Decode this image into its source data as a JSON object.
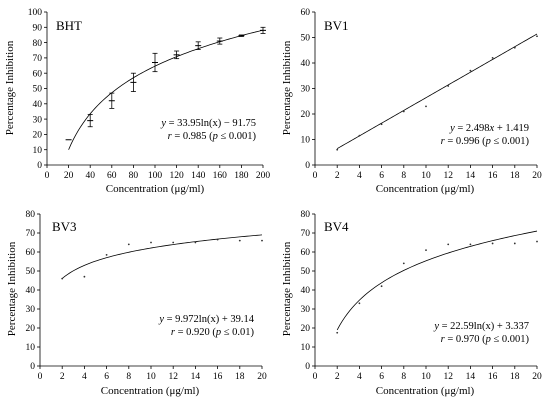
{
  "chart_data": [
    {
      "type": "scatter",
      "panel_label": "BHT",
      "xlabel": "Concentration (μg/ml)",
      "ylabel": "Percentage Inhibition",
      "xlim": [
        0,
        200
      ],
      "ylim": [
        0,
        100
      ],
      "xticks": [
        0,
        20,
        40,
        60,
        80,
        100,
        120,
        140,
        160,
        180,
        200
      ],
      "yticks": [
        0,
        10,
        20,
        30,
        40,
        50,
        60,
        70,
        80,
        90,
        100
      ],
      "grid": false,
      "fit": {
        "model": "log",
        "a": 33.95,
        "b": -91.75,
        "x_range": [
          20,
          200
        ]
      },
      "annotation": {
        "equation": {
          "lhs": "y",
          "rhs": " = 33.95ln(x) − 91.75"
        },
        "stats": {
          "r": "r",
          "rest": " = 0.985 (",
          "p": "p",
          "rest2": " ≤ 0.001)"
        }
      },
      "points": [
        {
          "x": 20,
          "y": 16.5,
          "err": 0
        },
        {
          "x": 40,
          "y": 29,
          "err": 4
        },
        {
          "x": 60,
          "y": 42,
          "err": 5
        },
        {
          "x": 80,
          "y": 54,
          "err": 6
        },
        {
          "x": 100,
          "y": 67,
          "err": 6
        },
        {
          "x": 120,
          "y": 72,
          "err": 2.5
        },
        {
          "x": 140,
          "y": 78,
          "err": 2.5
        },
        {
          "x": 160,
          "y": 81,
          "err": 2
        },
        {
          "x": 180,
          "y": 84.5,
          "err": 0.5
        },
        {
          "x": 200,
          "y": 88,
          "err": 2
        }
      ]
    },
    {
      "type": "scatter",
      "panel_label": "BV1",
      "xlabel": "Concentration (μg/ml)",
      "ylabel": "Percentage Inhibition",
      "xlim": [
        0,
        20
      ],
      "ylim": [
        0,
        60
      ],
      "xticks": [
        0,
        2,
        4,
        6,
        8,
        10,
        12,
        14,
        16,
        18,
        20
      ],
      "yticks": [
        0,
        10,
        20,
        30,
        40,
        50,
        60
      ],
      "grid": false,
      "fit": {
        "model": "linear",
        "a": 2.498,
        "b": 1.419,
        "x_range": [
          2,
          20
        ]
      },
      "annotation": {
        "equation": {
          "lhs": "y",
          "rhs": " = 2.498",
          "x": "x",
          "rest": " + 1.419"
        },
        "stats": {
          "r": "r",
          "rest": " = 0.996 (",
          "p": "p",
          "rest2": " ≤ 0.001)"
        }
      },
      "points": [
        {
          "x": 2,
          "y": 6
        },
        {
          "x": 4,
          "y": 11.5
        },
        {
          "x": 6,
          "y": 16
        },
        {
          "x": 8,
          "y": 21
        },
        {
          "x": 10,
          "y": 23
        },
        {
          "x": 12,
          "y": 31
        },
        {
          "x": 14,
          "y": 37
        },
        {
          "x": 16,
          "y": 42
        },
        {
          "x": 18,
          "y": 46
        },
        {
          "x": 20,
          "y": 50.5
        }
      ]
    },
    {
      "type": "scatter",
      "panel_label": "BV3",
      "xlabel": "Concentration (μg/ml)",
      "ylabel": "Percentage Inhibition",
      "xlim": [
        0,
        20
      ],
      "ylim": [
        0,
        80
      ],
      "xticks": [
        0,
        2,
        4,
        6,
        8,
        10,
        12,
        14,
        16,
        18,
        20
      ],
      "yticks": [
        0,
        10,
        20,
        30,
        40,
        50,
        60,
        70,
        80
      ],
      "grid": false,
      "fit": {
        "model": "log",
        "a": 9.972,
        "b": 39.14,
        "x_range": [
          2,
          20
        ]
      },
      "annotation": {
        "equation": {
          "lhs": "y",
          "rhs": " = 9.972ln(x) + 39.14"
        },
        "stats": {
          "r": "r",
          "rest": " = 0.920 (",
          "p": "p",
          "rest2": " ≤ 0.01)"
        }
      },
      "points": [
        {
          "x": 2,
          "y": 46
        },
        {
          "x": 4,
          "y": 47
        },
        {
          "x": 6,
          "y": 58.5
        },
        {
          "x": 8,
          "y": 64
        },
        {
          "x": 10,
          "y": 65
        },
        {
          "x": 12,
          "y": 65
        },
        {
          "x": 14,
          "y": 65
        },
        {
          "x": 16,
          "y": 66.5
        },
        {
          "x": 18,
          "y": 66
        },
        {
          "x": 20,
          "y": 66
        }
      ]
    },
    {
      "type": "scatter",
      "panel_label": "BV4",
      "xlabel": "Concentration (μg/ml)",
      "ylabel": "Percentage Inhibition",
      "xlim": [
        0,
        20
      ],
      "ylim": [
        0,
        80
      ],
      "xticks": [
        0,
        2,
        4,
        6,
        8,
        10,
        12,
        14,
        16,
        18,
        20
      ],
      "yticks": [
        0,
        10,
        20,
        30,
        40,
        50,
        60,
        70,
        80
      ],
      "grid": false,
      "fit": {
        "model": "log",
        "a": 22.59,
        "b": 3.337,
        "x_range": [
          2,
          20
        ]
      },
      "annotation": {
        "equation": {
          "lhs": "y",
          "rhs": " = 22.59ln(x) + 3.337"
        },
        "stats": {
          "r": "r",
          "rest": " = 0.970 (",
          "p": "p",
          "rest2": " ≤ 0.001)"
        }
      },
      "points": [
        {
          "x": 2,
          "y": 17.5
        },
        {
          "x": 4,
          "y": 33
        },
        {
          "x": 6,
          "y": 42
        },
        {
          "x": 8,
          "y": 54
        },
        {
          "x": 10,
          "y": 61
        },
        {
          "x": 12,
          "y": 64
        },
        {
          "x": 14,
          "y": 64
        },
        {
          "x": 16,
          "y": 64.5
        },
        {
          "x": 18,
          "y": 64.5
        },
        {
          "x": 20,
          "y": 65.5
        }
      ]
    }
  ]
}
